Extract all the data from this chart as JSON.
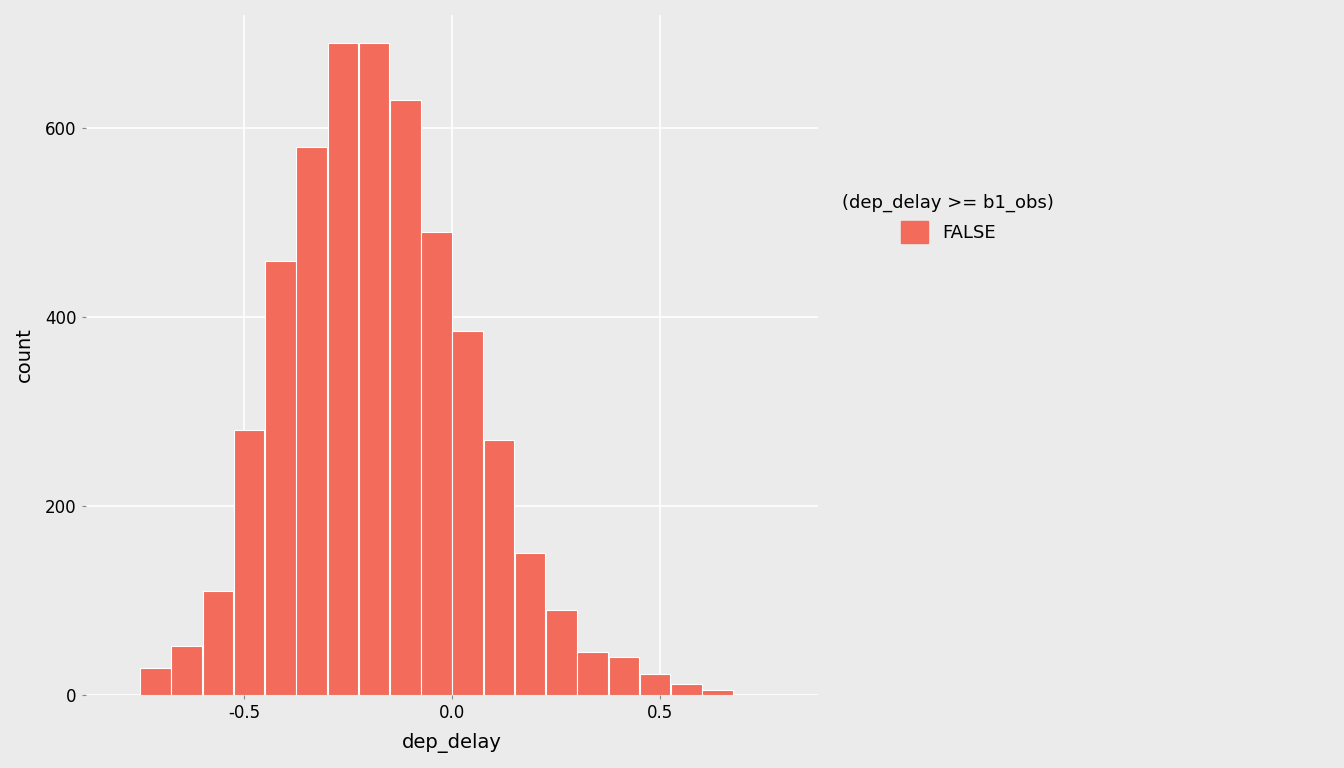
{
  "title": "",
  "xlabel": "dep_delay",
  "ylabel": "count",
  "bar_color": "#F26B5B",
  "bar_edge_color": "#FFFFFF",
  "background_color": "#EBEBEB",
  "panel_background": "#EBEBEB",
  "grid_color": "#FFFFFF",
  "legend_title": "(dep_delay >= b1_obs)",
  "legend_label": "FALSE",
  "bar_lefts": [
    -0.75,
    -0.675,
    -0.6,
    -0.525,
    -0.45,
    -0.375,
    -0.3,
    -0.225,
    -0.15,
    -0.075,
    0.0,
    0.075,
    0.15,
    0.225,
    0.3,
    0.375,
    0.45,
    0.525,
    0.6,
    0.675
  ],
  "counts": [
    28,
    52,
    110,
    280,
    460,
    580,
    690,
    690,
    630,
    490,
    385,
    270,
    150,
    90,
    45,
    40,
    22,
    12,
    5,
    0
  ],
  "bin_width": 0.075,
  "xlim": [
    -0.88,
    0.88
  ],
  "ylim": [
    0,
    720
  ],
  "yticks": [
    0,
    200,
    400,
    600
  ],
  "xticks": [
    -0.5,
    0.0,
    0.5
  ]
}
